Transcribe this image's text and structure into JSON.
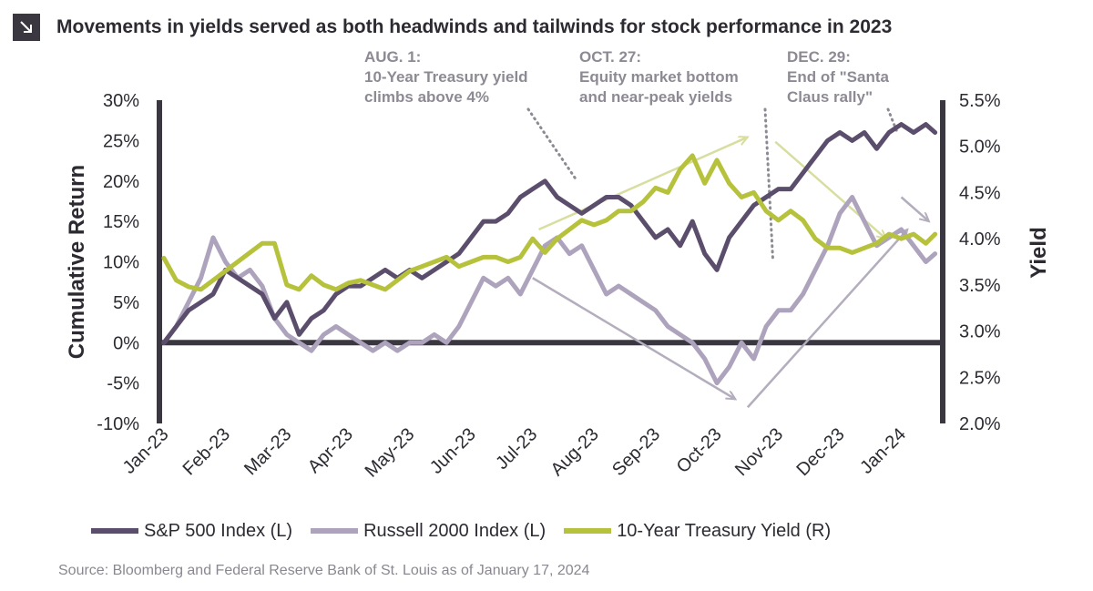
{
  "header": {
    "title": "Movements in yields served as both headwinds and tailwinds for stock performance in 2023",
    "icon": "arrow-down-right-icon"
  },
  "source": "Source: Bloomberg and Federal Reserve Bank of St. Louis as of January 17, 2024",
  "colors": {
    "sp500": "#5b4d6c",
    "russell": "#aea3bd",
    "treasury": "#b7c23c",
    "axis": "#3b3740",
    "text": "#2d2a32",
    "source": "#8a8790",
    "annotation": "#8e8a94"
  },
  "chart_data": {
    "type": "line",
    "title": "Movements in yields served as both headwinds and tailwinds for stock performance in 2023",
    "ylabel": "Cumulative Return",
    "y2label": "Yield",
    "xlabel": "",
    "ylim": [
      -10,
      30
    ],
    "y2lim": [
      2.0,
      5.5
    ],
    "x_ticks": [
      "Jan-23",
      "Feb-23",
      "Mar-23",
      "Apr-23",
      "May-23",
      "Jun-23",
      "Jul-23",
      "Aug-23",
      "Sep-23",
      "Oct-23",
      "Nov-23",
      "Dec-23",
      "Jan-24"
    ],
    "y_ticks": [
      "30%",
      "25%",
      "20%",
      "15%",
      "10%",
      "5%",
      "0%",
      "-5%",
      "-10%"
    ],
    "y2_ticks": [
      "5.5%",
      "5.0%",
      "4.5%",
      "4.0%",
      "3.5%",
      "3.0%",
      "2.5%",
      "2.0%"
    ],
    "legend": [
      "S&P 500 Index (L)",
      "Russell 2000 Index (L)",
      "10-Year Treasury Yield (R)"
    ],
    "legend_position": "bottom",
    "series": [
      {
        "name": "S&P 500 Index (L)",
        "axis": "left",
        "x": [
          0,
          0.2,
          0.4,
          0.6,
          0.8,
          1.0,
          1.2,
          1.4,
          1.6,
          1.8,
          2.0,
          2.2,
          2.4,
          2.6,
          2.8,
          3.0,
          3.2,
          3.4,
          3.6,
          3.8,
          4.0,
          4.2,
          4.4,
          4.6,
          4.8,
          5.0,
          5.2,
          5.4,
          5.6,
          5.8,
          6.0,
          6.2,
          6.4,
          6.6,
          6.8,
          7.0,
          7.2,
          7.4,
          7.6,
          7.8,
          8.0,
          8.2,
          8.4,
          8.6,
          8.8,
          9.0,
          9.2,
          9.4,
          9.6,
          9.8,
          10.0,
          10.2,
          10.4,
          10.6,
          10.8,
          11.0,
          11.2,
          11.4,
          11.6,
          11.8,
          12.0,
          12.2,
          12.4,
          12.55
        ],
        "values": [
          0,
          2,
          4,
          5,
          6,
          9,
          8,
          7,
          6,
          3,
          5,
          1,
          3,
          4,
          6,
          7,
          7,
          8,
          9,
          8,
          9,
          8,
          9,
          10,
          11,
          13,
          15,
          15,
          16,
          18,
          19,
          20,
          18,
          17,
          16,
          17,
          18,
          18,
          17,
          15,
          13,
          14,
          12,
          15,
          11,
          9,
          13,
          15,
          17,
          18,
          19,
          19,
          21,
          23,
          25,
          26,
          25,
          26,
          24,
          26,
          27,
          26,
          27,
          26
        ]
      },
      {
        "name": "Russell 2000 Index (L)",
        "axis": "left",
        "x": [
          0,
          0.2,
          0.4,
          0.6,
          0.8,
          1.0,
          1.2,
          1.4,
          1.6,
          1.8,
          2.0,
          2.2,
          2.4,
          2.6,
          2.8,
          3.0,
          3.2,
          3.4,
          3.6,
          3.8,
          4.0,
          4.2,
          4.4,
          4.6,
          4.8,
          5.0,
          5.2,
          5.4,
          5.6,
          5.8,
          6.0,
          6.2,
          6.4,
          6.6,
          6.8,
          7.0,
          7.2,
          7.4,
          7.6,
          7.8,
          8.0,
          8.2,
          8.4,
          8.6,
          8.8,
          9.0,
          9.2,
          9.4,
          9.6,
          9.8,
          10.0,
          10.2,
          10.4,
          10.6,
          10.8,
          11.0,
          11.2,
          11.4,
          11.6,
          11.8,
          12.0,
          12.2,
          12.4,
          12.55
        ],
        "values": [
          0,
          2,
          5,
          8,
          13,
          10,
          8,
          9,
          7,
          3,
          1,
          0,
          -1,
          1,
          2,
          1,
          0,
          -1,
          0,
          -1,
          0,
          0,
          1,
          0,
          2,
          5,
          8,
          7,
          8,
          6,
          9,
          12,
          13,
          11,
          12,
          9,
          6,
          7,
          6,
          5,
          4,
          2,
          1,
          0,
          -2,
          -5,
          -3,
          0,
          -2,
          2,
          4,
          4,
          6,
          9,
          12,
          16,
          18,
          15,
          12,
          13,
          14,
          12,
          10,
          11
        ]
      },
      {
        "name": "10-Year Treasury Yield (R)",
        "axis": "right",
        "x": [
          0,
          0.2,
          0.4,
          0.6,
          0.8,
          1.0,
          1.2,
          1.4,
          1.6,
          1.8,
          2.0,
          2.2,
          2.4,
          2.6,
          2.8,
          3.0,
          3.2,
          3.4,
          3.6,
          3.8,
          4.0,
          4.2,
          4.4,
          4.6,
          4.8,
          5.0,
          5.2,
          5.4,
          5.6,
          5.8,
          6.0,
          6.2,
          6.4,
          6.6,
          6.8,
          7.0,
          7.2,
          7.4,
          7.6,
          7.8,
          8.0,
          8.2,
          8.4,
          8.6,
          8.8,
          9.0,
          9.2,
          9.4,
          9.6,
          9.8,
          10.0,
          10.2,
          10.4,
          10.6,
          10.8,
          11.0,
          11.2,
          11.4,
          11.6,
          11.8,
          12.0,
          12.2,
          12.4,
          12.55
        ],
        "values": [
          3.79,
          3.55,
          3.48,
          3.45,
          3.55,
          3.65,
          3.75,
          3.85,
          3.95,
          3.95,
          3.5,
          3.45,
          3.6,
          3.5,
          3.45,
          3.52,
          3.55,
          3.5,
          3.45,
          3.55,
          3.65,
          3.7,
          3.75,
          3.8,
          3.7,
          3.75,
          3.8,
          3.8,
          3.75,
          3.8,
          4.0,
          3.85,
          4.0,
          4.1,
          4.2,
          4.15,
          4.2,
          4.3,
          4.3,
          4.4,
          4.55,
          4.5,
          4.75,
          4.9,
          4.6,
          4.85,
          4.6,
          4.45,
          4.5,
          4.3,
          4.2,
          4.3,
          4.2,
          4.0,
          3.9,
          3.9,
          3.85,
          3.9,
          3.95,
          4.05,
          4.0,
          4.05,
          3.95,
          4.05
        ]
      }
    ],
    "annotations": [
      {
        "label": "AUG. 1:",
        "lines": [
          "10-Year Treasury yield",
          "climbs above 4%"
        ],
        "x": 7.0,
        "y": 20
      },
      {
        "label": "OCT. 27:",
        "lines": [
          "Equity market bottom",
          "and near-peak yields"
        ],
        "x": 9.85,
        "y": 9
      },
      {
        "label": "DEC. 29:",
        "lines": [
          "End of \"Santa",
          "Claus rally\""
        ],
        "x": 11.95,
        "y": 26.5
      }
    ],
    "trend_arrows": [
      {
        "series": "10-Year Treasury Yield (R)",
        "from": [
          6.1,
          4.1
        ],
        "to": [
          9.5,
          5.1
        ]
      },
      {
        "series": "10-Year Treasury Yield (R)",
        "from": [
          9.95,
          5.05
        ],
        "to": [
          11.75,
          4.0
        ]
      },
      {
        "series": "S&P 500 Index (L)",
        "from": [
          6.0,
          8.0
        ],
        "to": [
          9.3,
          -7.0
        ]
      },
      {
        "series": "S&P 500 Index (L)",
        "from": [
          9.5,
          -8.0
        ],
        "to": [
          12.1,
          14.0
        ]
      },
      {
        "series": "S&P 500 Index (L)",
        "from": [
          12.0,
          18.0
        ],
        "to": [
          12.45,
          15.0
        ]
      }
    ]
  }
}
